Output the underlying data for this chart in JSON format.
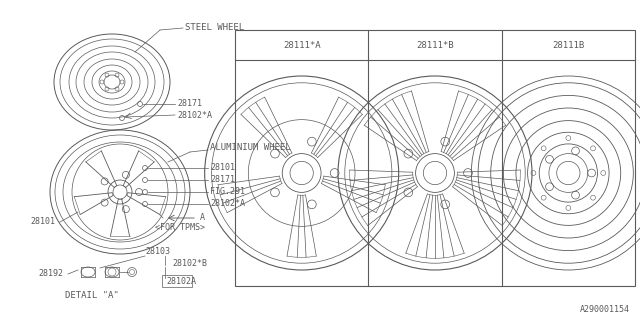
{
  "bg_color": "#ffffff",
  "line_color": "#5a5a5a",
  "part_id": "A290001154",
  "table_headers": [
    "28111*A",
    "28111*B",
    "28111B"
  ],
  "labels": {
    "steel_wheel": "STEEL WHEEL",
    "aluminium_wheel": "ALUMINIUM WHEEL",
    "detail_a": "DETAIL \"A\"",
    "for_tpms": "<FOR TPMS>",
    "28171_1": "28171",
    "28102A_1": "28102*A",
    "28101_al": "28101",
    "28171_al": "28171",
    "fig291": "FIG.291",
    "28102A_al": "28102*A",
    "A_label": "A",
    "28101_bolt": "28101",
    "28103": "28103",
    "28192": "28192",
    "28102B": "28102*B",
    "28102A_det": "28102A"
  }
}
